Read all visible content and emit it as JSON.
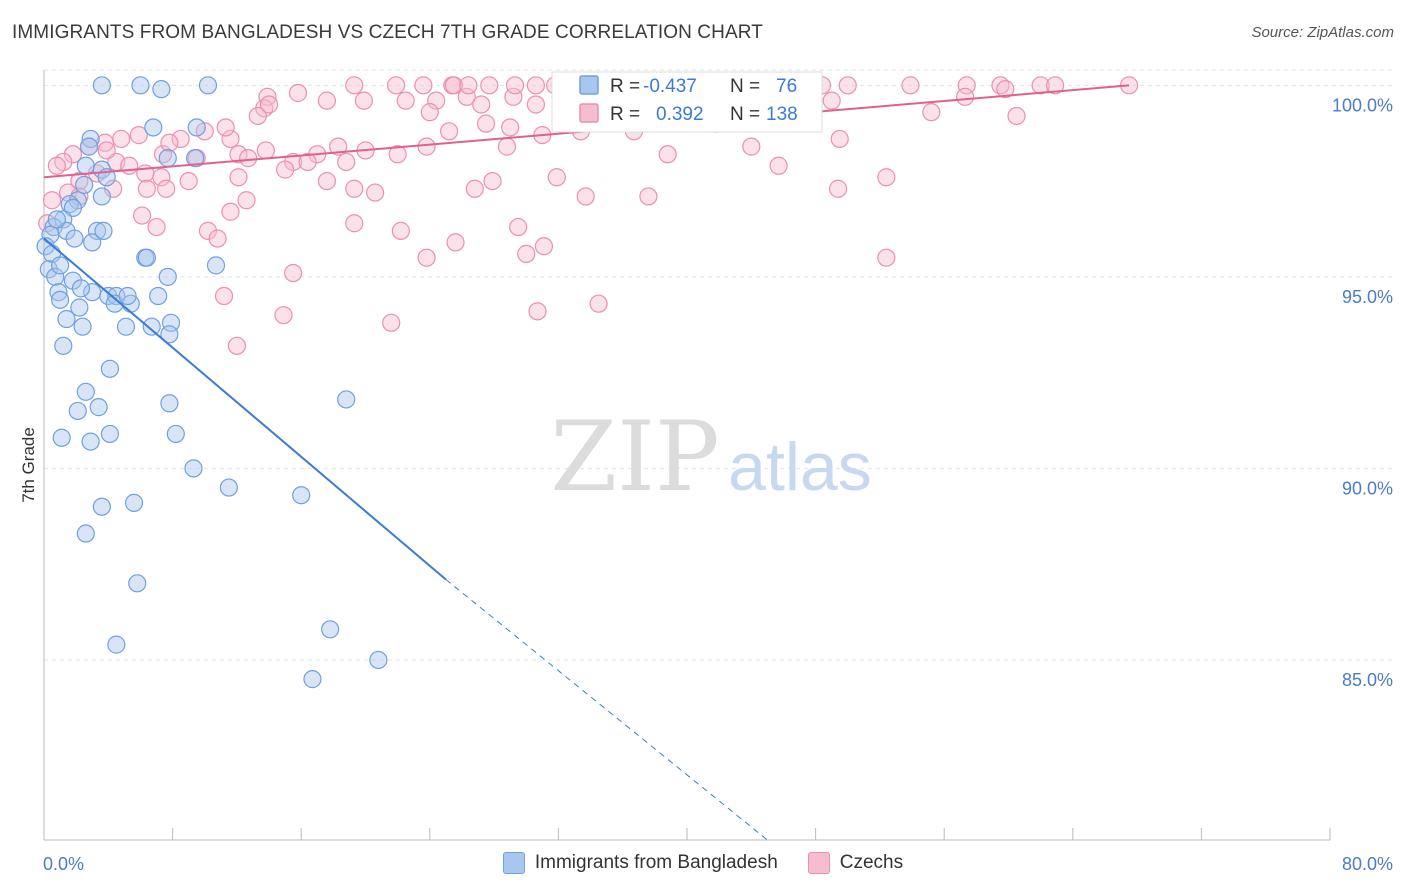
{
  "title": "IMMIGRANTS FROM BANGLADESH VS CZECH 7TH GRADE CORRELATION CHART",
  "source": "Source: ZipAtlas.com",
  "watermark": {
    "zip": "ZIP",
    "atlas": "atlas"
  },
  "colors": {
    "blue": "#6fa0e0",
    "blue_fill": "#a9c6ee",
    "blue_line": "#3a7bd5",
    "pink": "#ec8fb0",
    "pink_fill": "#f6bcd0",
    "pink_line": "#e0608f",
    "axis_text": "#4a7cc8",
    "grid": "#e3e3e3"
  },
  "legend": {
    "series": [
      {
        "r_label": "R =",
        "r_value": "-0.437",
        "n_label": "N =",
        "n_value": "76"
      },
      {
        "r_label": "R =",
        "r_value": "0.392",
        "n_label": "N =",
        "n_value": "138"
      }
    ]
  },
  "chart_data": {
    "type": "scatter",
    "title": "IMMIGRANTS FROM BANGLADESH VS CZECH 7TH GRADE CORRELATION CHART",
    "xlabel": "",
    "ylabel": "7th Grade",
    "xlim": [
      0,
      80
    ],
    "ylim": [
      80.3,
      100.4
    ],
    "x_tick_labels": [
      "0.0%",
      "80.0%"
    ],
    "y_tick_labels": [
      {
        "value": 100,
        "label": "100.0%"
      },
      {
        "value": 95,
        "label": "95.0%"
      },
      {
        "value": 90,
        "label": "90.0%"
      },
      {
        "value": 85,
        "label": "85.0%"
      }
    ],
    "grid": true,
    "series": [
      {
        "name": "Immigrants from Bangladesh",
        "color": "blue",
        "trend": {
          "x0": 0,
          "y0": 96.0,
          "x1": 25,
          "y1": 87.1,
          "dash_x1": 45,
          "dash_y1": 80.3
        },
        "points": [
          [
            3.6,
            100
          ],
          [
            6.0,
            100
          ],
          [
            7.3,
            99.9
          ],
          [
            10.2,
            100
          ],
          [
            6.8,
            98.9
          ],
          [
            9.5,
            98.9
          ],
          [
            2.9,
            98.6
          ],
          [
            2.8,
            98.4
          ],
          [
            7.7,
            98.1
          ],
          [
            9.4,
            98.1
          ],
          [
            2.6,
            97.9
          ],
          [
            3.6,
            97.8
          ],
          [
            3.9,
            97.6
          ],
          [
            2.1,
            97.0
          ],
          [
            3.6,
            97.1
          ],
          [
            1.6,
            96.9
          ],
          [
            1.8,
            96.8
          ],
          [
            1.2,
            96.5
          ],
          [
            0.6,
            96.3
          ],
          [
            1.4,
            96.2
          ],
          [
            3.3,
            96.2
          ],
          [
            0.4,
            96.1
          ],
          [
            1.9,
            96.0
          ],
          [
            3.0,
            95.9
          ],
          [
            0.1,
            95.8
          ],
          [
            0.5,
            95.6
          ],
          [
            6.3,
            95.5
          ],
          [
            6.4,
            95.5
          ],
          [
            10.7,
            95.3
          ],
          [
            0.3,
            95.2
          ],
          [
            0.7,
            95.0
          ],
          [
            7.7,
            95.0
          ],
          [
            1.8,
            94.9
          ],
          [
            3.0,
            94.6
          ],
          [
            0.9,
            94.6
          ],
          [
            4.0,
            94.5
          ],
          [
            4.5,
            94.5
          ],
          [
            7.1,
            94.5
          ],
          [
            1.0,
            94.4
          ],
          [
            2.2,
            94.2
          ],
          [
            4.4,
            94.3
          ],
          [
            5.4,
            94.3
          ],
          [
            1.4,
            93.9
          ],
          [
            2.4,
            93.7
          ],
          [
            5.1,
            93.7
          ],
          [
            6.7,
            93.7
          ],
          [
            7.9,
            93.8
          ],
          [
            7.8,
            93.5
          ],
          [
            1.2,
            93.2
          ],
          [
            4.1,
            92.6
          ],
          [
            2.6,
            92.0
          ],
          [
            18.8,
            91.8
          ],
          [
            3.4,
            91.6
          ],
          [
            2.1,
            91.5
          ],
          [
            7.8,
            91.7
          ],
          [
            8.2,
            90.9
          ],
          [
            4.1,
            90.9
          ],
          [
            1.1,
            90.8
          ],
          [
            2.9,
            90.7
          ],
          [
            9.3,
            90.0
          ],
          [
            11.5,
            89.5
          ],
          [
            16.0,
            89.3
          ],
          [
            5.6,
            89.1
          ],
          [
            3.6,
            89.0
          ],
          [
            2.6,
            88.3
          ],
          [
            5.8,
            87.0
          ],
          [
            17.8,
            85.8
          ],
          [
            4.5,
            85.4
          ],
          [
            20.8,
            85.0
          ],
          [
            16.7,
            84.5
          ],
          [
            0.8,
            96.5
          ],
          [
            1.0,
            95.3
          ],
          [
            2.3,
            94.7
          ],
          [
            5.2,
            94.5
          ],
          [
            3.7,
            96.2
          ],
          [
            2.5,
            97.4
          ]
        ]
      },
      {
        "name": "Czechs",
        "color": "pink",
        "trend": {
          "x0": 0,
          "y0": 97.6,
          "x1": 67.5,
          "y1": 100.0
        },
        "points": [
          [
            13.9,
            99.7
          ],
          [
            15.8,
            99.8
          ],
          [
            17.6,
            99.6
          ],
          [
            19.9,
            99.6
          ],
          [
            22.5,
            99.6
          ],
          [
            24.4,
            99.6
          ],
          [
            26.3,
            99.7
          ],
          [
            27.2,
            99.5
          ],
          [
            29.2,
            99.7
          ],
          [
            30.6,
            99.5
          ],
          [
            19.3,
            100
          ],
          [
            21.9,
            100
          ],
          [
            23.6,
            100
          ],
          [
            25.4,
            100
          ],
          [
            25.5,
            100
          ],
          [
            26.4,
            100
          ],
          [
            27.7,
            100
          ],
          [
            29.3,
            100
          ],
          [
            30.6,
            100
          ],
          [
            31.8,
            100
          ],
          [
            33.2,
            100
          ],
          [
            34.9,
            100
          ],
          [
            35.8,
            100
          ],
          [
            36.5,
            100
          ],
          [
            38.9,
            100
          ],
          [
            40.3,
            100
          ],
          [
            41.7,
            100
          ],
          [
            42.7,
            100
          ],
          [
            44.4,
            100
          ],
          [
            45.9,
            100
          ],
          [
            46.4,
            100
          ],
          [
            48.4,
            100
          ],
          [
            50.0,
            100
          ],
          [
            53.9,
            100
          ],
          [
            57.4,
            100
          ],
          [
            59.5,
            100
          ],
          [
            62.0,
            100
          ],
          [
            62.9,
            100
          ],
          [
            67.5,
            100
          ],
          [
            59.8,
            99.9
          ],
          [
            57.3,
            99.7
          ],
          [
            49.0,
            99.6
          ],
          [
            47.1,
            99.5
          ],
          [
            45.4,
            99.4
          ],
          [
            43.9,
            99.3
          ],
          [
            42.4,
            99.2
          ],
          [
            41.8,
            99.0
          ],
          [
            60.5,
            99.2
          ],
          [
            55.2,
            99.3
          ],
          [
            36.7,
            98.8
          ],
          [
            33.4,
            98.8
          ],
          [
            31.0,
            98.7
          ],
          [
            29.0,
            98.9
          ],
          [
            27.5,
            99.0
          ],
          [
            25.2,
            98.8
          ],
          [
            23.8,
            98.4
          ],
          [
            22.0,
            98.2
          ],
          [
            20.0,
            98.3
          ],
          [
            18.3,
            98.4
          ],
          [
            17.0,
            98.2
          ],
          [
            15.5,
            98.0
          ],
          [
            13.8,
            98.3
          ],
          [
            12.1,
            98.2
          ],
          [
            11.6,
            98.6
          ],
          [
            10.0,
            98.8
          ],
          [
            8.5,
            98.6
          ],
          [
            7.4,
            98.2
          ],
          [
            5.9,
            98.7
          ],
          [
            4.8,
            98.6
          ],
          [
            3.8,
            98.5
          ],
          [
            2.8,
            98.4
          ],
          [
            1.8,
            98.2
          ],
          [
            1.2,
            98.0
          ],
          [
            0.8,
            97.9
          ],
          [
            4.5,
            98.0
          ],
          [
            6.3,
            97.7
          ],
          [
            9.5,
            98.1
          ],
          [
            7.3,
            97.6
          ],
          [
            3.3,
            97.7
          ],
          [
            2.2,
            97.5
          ],
          [
            4.3,
            97.3
          ],
          [
            6.4,
            97.3
          ],
          [
            7.6,
            97.3
          ],
          [
            9.0,
            97.5
          ],
          [
            12.1,
            97.6
          ],
          [
            15.0,
            97.8
          ],
          [
            17.6,
            97.5
          ],
          [
            19.3,
            97.3
          ],
          [
            20.6,
            97.2
          ],
          [
            26.8,
            97.3
          ],
          [
            27.9,
            97.5
          ],
          [
            31.9,
            97.6
          ],
          [
            33.7,
            97.1
          ],
          [
            37.6,
            97.1
          ],
          [
            49.4,
            97.3
          ],
          [
            52.4,
            97.6
          ],
          [
            1.5,
            97.2
          ],
          [
            6.1,
            96.6
          ],
          [
            7.0,
            96.3
          ],
          [
            10.2,
            96.2
          ],
          [
            11.6,
            96.7
          ],
          [
            12.6,
            97.0
          ],
          [
            19.3,
            96.4
          ],
          [
            22.2,
            96.2
          ],
          [
            10.8,
            96.0
          ],
          [
            25.6,
            95.9
          ],
          [
            29.5,
            96.3
          ],
          [
            30.0,
            95.6
          ],
          [
            23.8,
            95.5
          ],
          [
            31.1,
            95.8
          ],
          [
            52.4,
            95.5
          ],
          [
            15.5,
            95.1
          ],
          [
            11.2,
            94.5
          ],
          [
            14.9,
            94.0
          ],
          [
            21.6,
            93.8
          ],
          [
            30.7,
            94.1
          ],
          [
            34.5,
            94.3
          ],
          [
            12.0,
            93.2
          ],
          [
            3.9,
            98.3
          ],
          [
            5.3,
            97.9
          ],
          [
            16.4,
            98.0
          ],
          [
            13.7,
            99.4
          ],
          [
            18.8,
            98.0
          ],
          [
            24.0,
            99.3
          ],
          [
            28.8,
            98.4
          ],
          [
            33.5,
            99.0
          ],
          [
            38.8,
            98.2
          ],
          [
            44.0,
            98.4
          ],
          [
            45.7,
            97.9
          ],
          [
            49.5,
            98.6
          ],
          [
            2.2,
            97.1
          ],
          [
            0.5,
            97.0
          ],
          [
            0.2,
            96.4
          ],
          [
            11.3,
            98.9
          ],
          [
            13.3,
            99.2
          ],
          [
            14.0,
            99.5
          ],
          [
            12.7,
            98.1
          ],
          [
            7.8,
            98.5
          ]
        ]
      }
    ],
    "bottom_legend": [
      "Immigrants from Bangladesh",
      "Czechs"
    ]
  }
}
